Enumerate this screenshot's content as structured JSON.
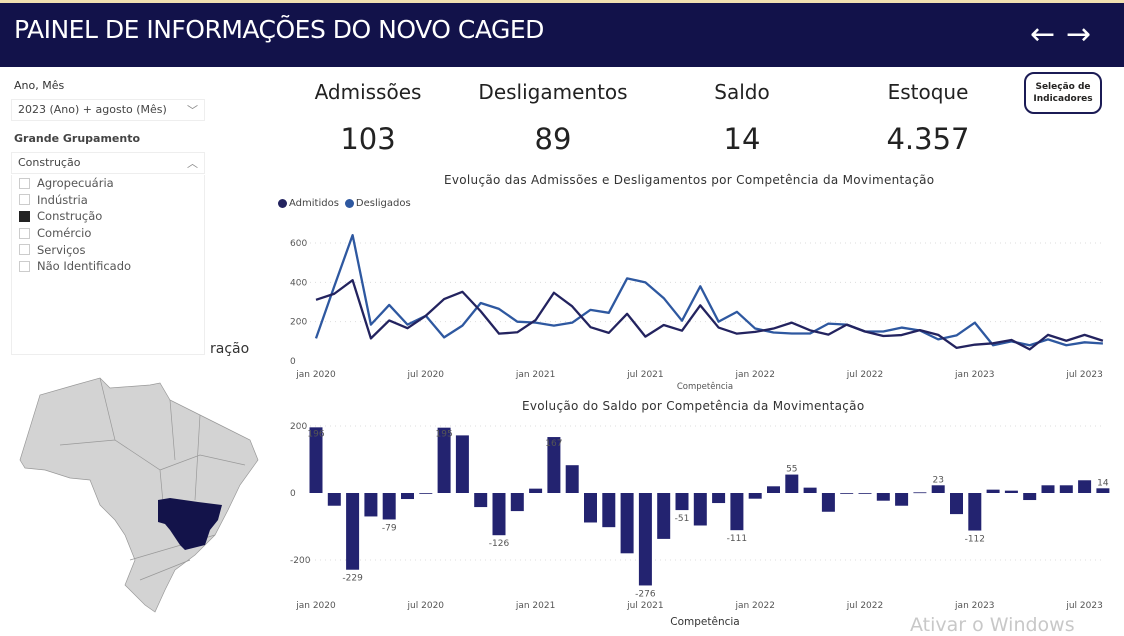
{
  "header": {
    "title": "PAINEL DE INFORMAÇÕES DO NOVO CAGED",
    "back": "←",
    "forward": "→"
  },
  "filters": {
    "ano_mes_label": "Ano, Mês",
    "ano_mes_value": "2023 (Ano) + agosto (Mês)",
    "grupo_label": "Grande Grupamento",
    "grupo_value": "Construção",
    "grupo_options": [
      {
        "label": "Agropecuária",
        "checked": false
      },
      {
        "label": "Indústria",
        "checked": false
      },
      {
        "label": "Construção",
        "checked": true
      },
      {
        "label": "Comércio",
        "checked": false
      },
      {
        "label": "Serviços",
        "checked": false
      },
      {
        "label": "Não Identificado",
        "checked": false
      }
    ]
  },
  "partial_title": "ração",
  "kpis": [
    {
      "label": "Admissões",
      "value": "103"
    },
    {
      "label": "Desligamentos",
      "value": "89"
    },
    {
      "label": "Saldo",
      "value": "14"
    },
    {
      "label": "Estoque",
      "value": "4.357"
    }
  ],
  "indicator_button": {
    "line1": "Seleção de",
    "line2": "Indicadores"
  },
  "colors": {
    "header": "#12124a",
    "admitidos": "#23235f",
    "desligados": "#2e58a0",
    "bars": "#232370",
    "map_highlight": "#13134a",
    "map_base": "#d3d3d3"
  },
  "chart_data": [
    {
      "type": "line",
      "title": "Evolução das Admissões e Desligamentos por Competência da Movimentação",
      "xlabel": "Competência",
      "ylabel": "",
      "ylim": [
        0,
        650
      ],
      "yticks": [
        0,
        200,
        400,
        600
      ],
      "xtick_labels": [
        "jan 2020",
        "jul 2020",
        "jan 2021",
        "jul 2021",
        "jan 2022",
        "jul 2022",
        "jan 2023",
        "jul 2023"
      ],
      "xtick_index": [
        0,
        6,
        12,
        18,
        24,
        30,
        36,
        42
      ],
      "legend": "top-left",
      "series": [
        {
          "name": "Admitidos",
          "values": [
            311,
            342,
            411,
            115,
            206,
            167,
            230,
            315,
            352,
            253,
            139,
            146,
            208,
            347,
            278,
            172,
            143,
            240,
            124,
            183,
            154,
            283,
            170,
            139,
            148,
            165,
            195,
            156,
            134,
            185,
            150,
            127,
            132,
            157,
            133,
            67,
            83,
            90,
            107,
            59,
            133,
            103,
            133,
            103
          ]
        },
        {
          "name": "Desligados",
          "values": [
            115,
            380,
            640,
            185,
            285,
            185,
            230,
            120,
            180,
            295,
            265,
            200,
            195,
            180,
            195,
            260,
            245,
            420,
            400,
            320,
            205,
            380,
            200,
            250,
            165,
            145,
            140,
            140,
            190,
            185,
            150,
            150,
            170,
            155,
            110,
            130,
            195,
            80,
            100,
            80,
            110,
            80,
            95,
            89
          ]
        }
      ]
    },
    {
      "type": "bar",
      "title": "Evolução do Saldo por Competência da Movimentação",
      "xlabel": "Competência",
      "ylim": [
        -290,
        210
      ],
      "yticks": [
        -200,
        0,
        200
      ],
      "xtick_labels": [
        "jan 2020",
        "jul 2020",
        "jan 2021",
        "jul 2021",
        "jan 2022",
        "jul 2022",
        "jan 2023",
        "jul 2023"
      ],
      "xtick_index": [
        0,
        6,
        12,
        18,
        24,
        30,
        36,
        42
      ],
      "values": [
        196,
        -38,
        -229,
        -70,
        -79,
        -18,
        0,
        195,
        172,
        -42,
        -126,
        -54,
        13,
        167,
        83,
        -88,
        -102,
        -180,
        -276,
        -137,
        -51,
        -97,
        -30,
        -111,
        -17,
        20,
        55,
        16,
        -56,
        0,
        0,
        -23,
        -38,
        2,
        23,
        -63,
        -112,
        10,
        7,
        -21,
        23,
        23,
        38,
        14
      ],
      "data_labels": {
        "0": "196",
        "2": "-229",
        "4": "-79",
        "7": "195",
        "10": "-126",
        "13": "167",
        "18": "-276",
        "20": "-51",
        "23": "-111",
        "26": "55",
        "34": "23",
        "36": "-112",
        "43": "14"
      }
    }
  ],
  "watermark": "Ativar o Windows"
}
